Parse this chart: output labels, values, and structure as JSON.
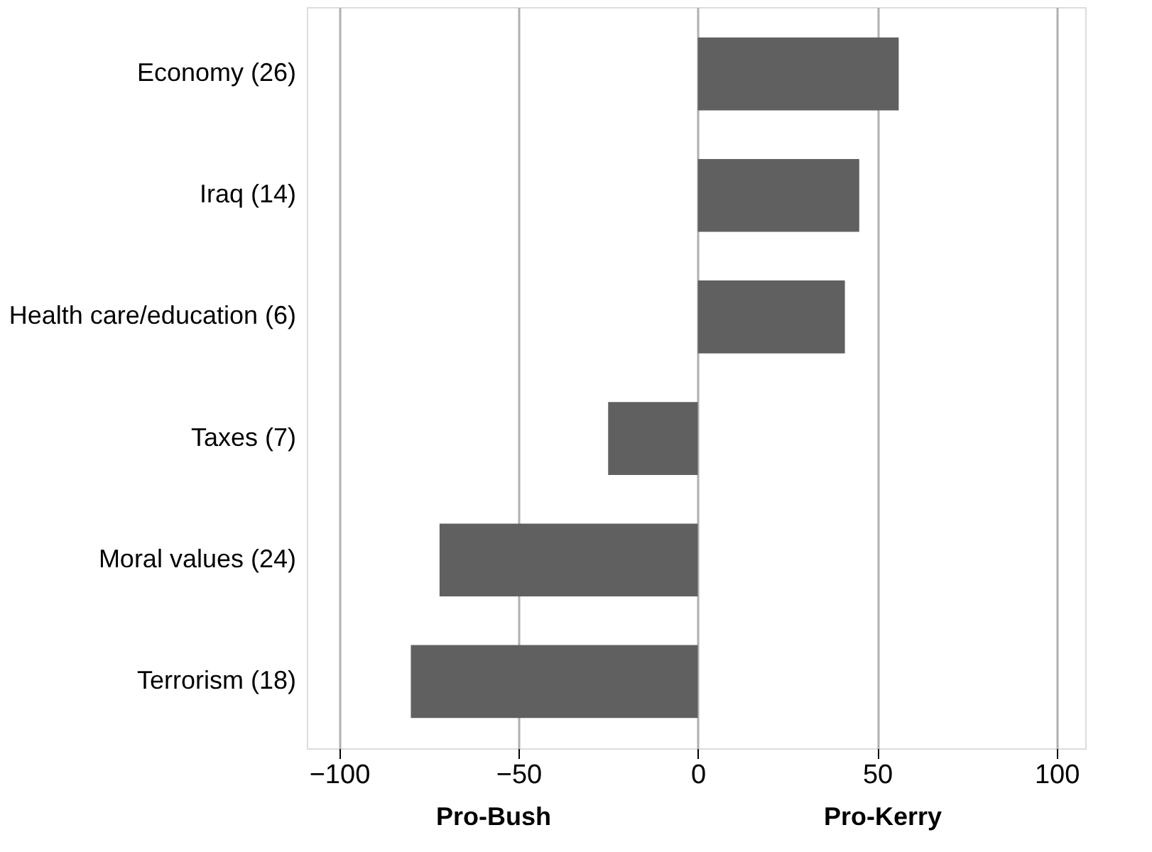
{
  "chart_data": {
    "type": "bar",
    "orientation": "horizontal",
    "categories": [
      "Economy (26)",
      "Iraq (14)",
      "Health care/education (6)",
      "Taxes (7)",
      "Moral values (24)",
      "Terrorism (18)"
    ],
    "values": [
      56,
      45,
      41,
      -25,
      -72,
      -80
    ],
    "color": "#606060",
    "xlim": [
      -109,
      108
    ],
    "xticks": [
      -100,
      -50,
      0,
      50,
      100
    ],
    "grid": "x",
    "annotations": [
      "Pro-Bush",
      "Pro-Kerry"
    ]
  }
}
